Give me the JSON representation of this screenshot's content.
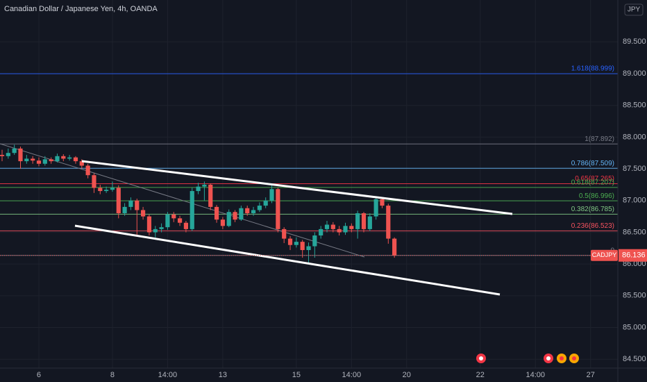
{
  "chart_data": {
    "type": "candlestick",
    "title": "Canadian Dollar / Japanese Yen, 4h, OANDA",
    "currency": "JPY",
    "symbol": "CADJPY",
    "up_color": "#26a69a",
    "down_color": "#ef5350",
    "grid": true,
    "x": [
      -6,
      -5,
      -4,
      -3,
      -2,
      -1,
      0,
      1,
      2,
      3,
      4,
      5,
      6,
      7,
      8,
      9,
      10,
      11,
      12,
      13,
      14,
      15,
      16,
      17,
      18,
      19,
      20,
      21,
      22,
      23,
      24,
      25,
      26,
      27,
      28,
      29,
      30,
      31,
      32,
      33,
      34,
      35,
      36,
      37,
      38,
      39,
      40,
      41,
      42,
      43,
      44,
      45,
      46,
      47,
      48,
      49,
      50,
      51,
      52,
      53,
      54,
      55,
      56,
      57,
      58
    ],
    "open": [
      87.72,
      87.7,
      87.75,
      87.82,
      87.62,
      87.66,
      87.63,
      87.58,
      87.65,
      87.62,
      87.7,
      87.66,
      87.68,
      87.62,
      87.55,
      87.4,
      87.2,
      87.15,
      87.17,
      87.2,
      86.8,
      86.9,
      87.0,
      86.85,
      86.75,
      86.5,
      86.55,
      86.58,
      86.78,
      86.72,
      86.65,
      86.55,
      87.15,
      87.22,
      87.25,
      86.9,
      86.7,
      86.6,
      86.82,
      86.7,
      86.88,
      86.8,
      86.85,
      86.92,
      87.0,
      87.18,
      86.55,
      86.4,
      86.3,
      86.35,
      86.22,
      86.28,
      86.45,
      86.55,
      86.62,
      86.55,
      86.5,
      86.6,
      86.55,
      86.8,
      86.55,
      86.75,
      87.02,
      86.92,
      86.4
    ],
    "high": [
      87.8,
      87.82,
      87.88,
      87.85,
      87.72,
      87.7,
      87.68,
      87.7,
      87.68,
      87.74,
      87.73,
      87.72,
      87.7,
      87.65,
      87.58,
      87.43,
      87.25,
      87.22,
      87.3,
      87.24,
      86.96,
      87.05,
      87.03,
      86.9,
      86.78,
      86.6,
      86.64,
      86.82,
      86.82,
      86.76,
      86.68,
      87.2,
      87.28,
      87.3,
      87.27,
      86.93,
      86.74,
      86.86,
      86.85,
      86.92,
      86.92,
      86.9,
      86.97,
      87.05,
      87.24,
      87.2,
      86.58,
      86.44,
      86.42,
      86.38,
      86.34,
      86.5,
      86.6,
      86.68,
      86.66,
      86.6,
      86.65,
      86.64,
      86.84,
      86.82,
      86.8,
      87.06,
      87.05,
      86.95,
      86.42
    ],
    "low": [
      87.62,
      87.66,
      87.72,
      87.5,
      87.58,
      87.58,
      87.54,
      87.55,
      87.58,
      87.6,
      87.62,
      87.63,
      87.58,
      87.5,
      87.35,
      87.12,
      87.1,
      87.12,
      87.14,
      86.72,
      86.76,
      86.85,
      86.45,
      86.7,
      86.45,
      86.42,
      86.5,
      86.54,
      86.66,
      86.6,
      86.5,
      86.52,
      87.1,
      87.0,
      86.85,
      86.65,
      86.55,
      86.58,
      86.66,
      86.68,
      86.76,
      86.76,
      86.82,
      86.88,
      86.96,
      86.5,
      86.33,
      86.22,
      86.26,
      86.1,
      86.0,
      86.1,
      86.4,
      86.5,
      86.5,
      86.45,
      86.46,
      86.5,
      86.4,
      86.5,
      86.52,
      86.7,
      86.88,
      86.32,
      86.1
    ],
    "close": [
      87.7,
      87.75,
      87.82,
      87.62,
      87.66,
      87.63,
      87.58,
      87.65,
      87.62,
      87.7,
      87.66,
      87.68,
      87.62,
      87.55,
      87.4,
      87.2,
      87.15,
      87.17,
      87.2,
      86.8,
      86.9,
      87.0,
      86.85,
      86.75,
      86.5,
      86.55,
      86.58,
      86.78,
      86.72,
      86.65,
      86.55,
      87.15,
      87.22,
      87.25,
      86.9,
      86.7,
      86.6,
      86.82,
      86.7,
      86.88,
      86.8,
      86.85,
      86.92,
      87.0,
      87.18,
      86.55,
      86.4,
      86.3,
      86.35,
      86.22,
      86.28,
      86.45,
      86.55,
      86.62,
      86.55,
      86.5,
      86.6,
      86.55,
      86.8,
      86.55,
      86.75,
      87.02,
      86.92,
      86.4,
      86.136
    ],
    "xlim": [
      -6.34,
      94.45
    ],
    "xticks": [
      {
        "value": 0,
        "label": "6"
      },
      {
        "value": 12,
        "label": "8"
      },
      {
        "value": 21,
        "label": "14:00"
      },
      {
        "value": 30,
        "label": "13"
      },
      {
        "value": 42,
        "label": "15"
      },
      {
        "value": 51,
        "label": "14:00"
      },
      {
        "value": 60,
        "label": "20"
      },
      {
        "value": 72,
        "label": "22"
      },
      {
        "value": 81,
        "label": "14:00"
      },
      {
        "value": 90,
        "label": "27"
      }
    ],
    "ylim": [
      84.36,
      90.16
    ],
    "yticks": [
      {
        "value": 84.5,
        "label": "84.500"
      },
      {
        "value": 85,
        "label": "85.000"
      },
      {
        "value": 85.5,
        "label": "85.500"
      },
      {
        "value": 86,
        "label": "86.000"
      },
      {
        "value": 86.5,
        "label": "86.500"
      },
      {
        "value": 87,
        "label": "87.000"
      },
      {
        "value": 87.5,
        "label": "87.500"
      },
      {
        "value": 88,
        "label": "88.000"
      },
      {
        "value": 88.5,
        "label": "88.500"
      },
      {
        "value": 89,
        "label": "89.000"
      },
      {
        "value": 89.5,
        "label": "89.500"
      }
    ],
    "fib_levels": [
      {
        "label": "1.618(88.999)",
        "value": 88.999,
        "color": "#2962ff"
      },
      {
        "label": "1(87.892)",
        "value": 87.892,
        "color": "#787b86"
      },
      {
        "label": "0.786(87.509)",
        "value": 87.509,
        "color": "#64b5f6"
      },
      {
        "label": "0.65(87.265)",
        "value": 87.265,
        "color": "#f23645"
      },
      {
        "label": "0.618(87.207)",
        "value": 87.207,
        "color": "#4caf50"
      },
      {
        "label": "0.5(86.996)",
        "value": 86.996,
        "color": "#4caf50"
      },
      {
        "label": "0.382(86.785)",
        "value": 86.785,
        "color": "#81c784"
      },
      {
        "label": "0.236(86.523)",
        "value": 86.523,
        "color": "#f7525f"
      },
      {
        "label": "0",
        "value": 86.136,
        "color": "#787b86"
      }
    ]
  }
}
